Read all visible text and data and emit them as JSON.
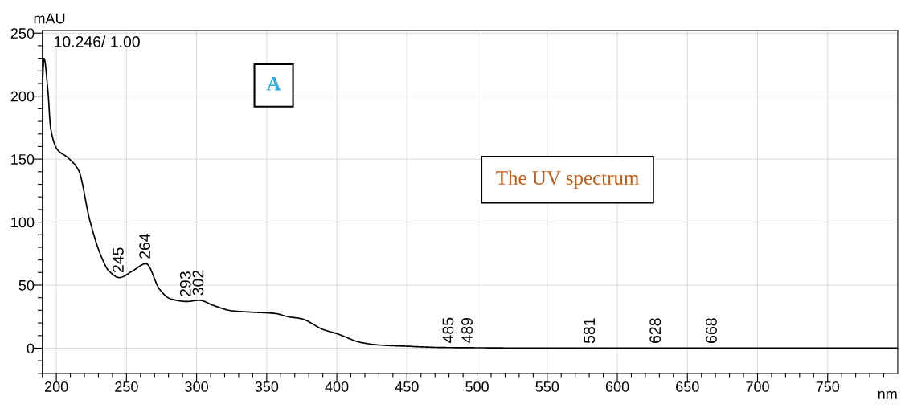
{
  "chart_data": {
    "type": "line",
    "xlabel": "nm",
    "ylabel": "mAU",
    "x": [
      190,
      191.2,
      194,
      196,
      200.8,
      208.4,
      216,
      223.7,
      231.4,
      237.2,
      245,
      254,
      264,
      273.6,
      281.2,
      293,
      302,
      311.9,
      325.3,
      340,
      356,
      365,
      375.1,
      390.4,
      400,
      417.2,
      430,
      450,
      475,
      500,
      550,
      600,
      650,
      700,
      750,
      800
    ],
    "series": [
      {
        "color": "#000000",
        "values": [
          208,
          230,
          204,
          174,
          157.5,
          151,
          140.7,
          102,
          74.4,
          61.6,
          56,
          61,
          67,
          46.7,
          39.2,
          37,
          38,
          33.9,
          29.6,
          28.5,
          27.5,
          25,
          23.2,
          14.7,
          11.5,
          4.5,
          2.5,
          1.5,
          0.5,
          0.3,
          0,
          0,
          0,
          0,
          0,
          0
        ]
      }
    ],
    "xlim": [
      190,
      800
    ],
    "ylim": [
      -20,
      252
    ],
    "xticks": [
      {
        "value": 190,
        "label": null
      },
      200,
      {
        "value": 210,
        "label": null
      },
      {
        "value": 220,
        "label": null
      },
      {
        "value": 230,
        "label": null
      },
      {
        "value": 240,
        "label": null
      },
      250,
      {
        "value": 260,
        "label": null
      },
      {
        "value": 270,
        "label": null
      },
      {
        "value": 280,
        "label": null
      },
      {
        "value": 290,
        "label": null
      },
      300,
      {
        "value": 310,
        "label": null
      },
      {
        "value": 320,
        "label": null
      },
      {
        "value": 330,
        "label": null
      },
      {
        "value": 340,
        "label": null
      },
      350,
      {
        "value": 360,
        "label": null
      },
      {
        "value": 370,
        "label": null
      },
      {
        "value": 380,
        "label": null
      },
      {
        "value": 390,
        "label": null
      },
      400,
      {
        "value": 410,
        "label": null
      },
      {
        "value": 420,
        "label": null
      },
      {
        "value": 430,
        "label": null
      },
      {
        "value": 440,
        "label": null
      },
      450,
      {
        "value": 460,
        "label": null
      },
      {
        "value": 470,
        "label": null
      },
      {
        "value": 480,
        "label": null
      },
      {
        "value": 490,
        "label": null
      },
      500,
      {
        "value": 510,
        "label": null
      },
      {
        "value": 520,
        "label": null
      },
      {
        "value": 530,
        "label": null
      },
      {
        "value": 540,
        "label": null
      },
      550,
      {
        "value": 560,
        "label": null
      },
      {
        "value": 570,
        "label": null
      },
      {
        "value": 580,
        "label": null
      },
      {
        "value": 590,
        "label": null
      },
      600,
      {
        "value": 610,
        "label": null
      },
      {
        "value": 620,
        "label": null
      },
      {
        "value": 630,
        "label": null
      },
      {
        "value": 640,
        "label": null
      },
      650,
      {
        "value": 660,
        "label": null
      },
      {
        "value": 670,
        "label": null
      },
      {
        "value": 680,
        "label": null
      },
      {
        "value": 690,
        "label": null
      },
      700,
      {
        "value": 710,
        "label": null
      },
      {
        "value": 720,
        "label": null
      },
      {
        "value": 730,
        "label": null
      },
      {
        "value": 740,
        "label": null
      },
      750,
      {
        "value": 760,
        "label": null
      },
      {
        "value": 770,
        "label": null
      },
      {
        "value": 780,
        "label": null
      },
      {
        "value": 790,
        "label": null
      }
    ],
    "yticks": [
      {
        "value": -20,
        "label": null
      },
      {
        "value": -10,
        "label": null
      },
      0,
      {
        "value": 10,
        "label": null
      },
      {
        "value": 20,
        "label": null
      },
      {
        "value": 30,
        "label": null
      },
      {
        "value": 40,
        "label": null
      },
      50,
      {
        "value": 60,
        "label": null
      },
      {
        "value": 70,
        "label": null
      },
      {
        "value": 80,
        "label": null
      },
      {
        "value": 90,
        "label": null
      },
      100,
      {
        "value": 110,
        "label": null
      },
      {
        "value": 120,
        "label": null
      },
      {
        "value": 130,
        "label": null
      },
      {
        "value": 140,
        "label": null
      },
      150,
      {
        "value": 160,
        "label": null
      },
      {
        "value": 170,
        "label": null
      },
      {
        "value": 180,
        "label": null
      },
      {
        "value": 190,
        "label": null
      },
      200,
      {
        "value": 210,
        "label": null
      },
      {
        "value": 220,
        "label": null
      },
      {
        "value": 230,
        "label": null
      },
      {
        "value": 240,
        "label": null
      },
      250
    ],
    "grid": true,
    "marker": "none",
    "line_style": "solid",
    "legend": false,
    "annotations": [
      "10.246/ 1.00",
      "A",
      "The UV spectrum",
      {
        "text": "245",
        "x": 245,
        "y": 56
      },
      {
        "text": "264",
        "x": 264,
        "y": 67
      },
      {
        "text": "293",
        "x": 293,
        "y": 37
      },
      {
        "text": "302",
        "x": 302,
        "y": 38
      },
      {
        "text": "485",
        "x": 485,
        "y": 0.3
      },
      {
        "text": "489",
        "x": 489,
        "y": 0.3
      },
      {
        "text": "581",
        "x": 581,
        "y": 0
      },
      {
        "text": "628",
        "x": 628,
        "y": 0
      },
      {
        "text": "668",
        "x": 668,
        "y": 0
      }
    ]
  }
}
